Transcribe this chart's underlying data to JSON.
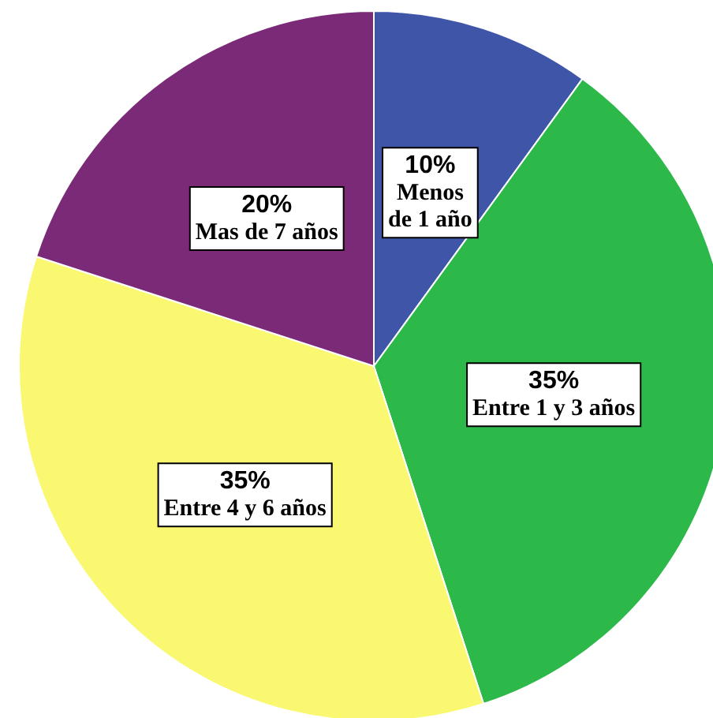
{
  "chart_data": {
    "type": "pie",
    "categories": [
      "Menos\nde 1 año",
      "Entre 1 y 3 años",
      "Entre 4 y 6 años",
      "Mas de 7 años"
    ],
    "values": [
      10,
      35,
      35,
      20
    ],
    "value_labels": [
      "10%",
      "35%",
      "35%",
      "20%"
    ],
    "colors": [
      "#3f56a8",
      "#2db84a",
      "#faf870",
      "#7b2a78"
    ]
  }
}
